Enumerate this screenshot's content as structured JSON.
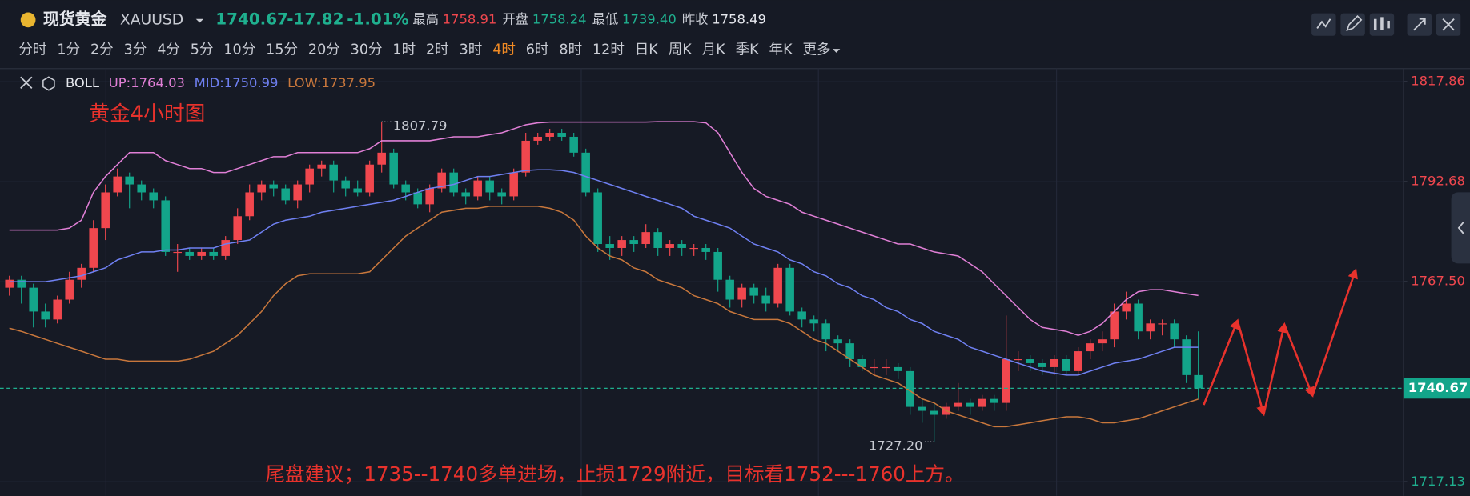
{
  "header": {
    "name": "现货黄金",
    "symbol": "XAUUSD",
    "price": "1740.67",
    "change": "-17.82",
    "change_pct": "-1.01%",
    "stats": [
      {
        "label": "最高",
        "value": "1758.91"
      },
      {
        "label": "开盘",
        "value": "1758.24"
      },
      {
        "label": "最低",
        "value": "1739.40"
      },
      {
        "label": "昨收",
        "value": "1758.49"
      }
    ]
  },
  "tabs": [
    "分时",
    "1分",
    "2分",
    "3分",
    "4分",
    "5分",
    "10分",
    "15分",
    "20分",
    "30分",
    "1时",
    "2时",
    "3时",
    "4时",
    "6时",
    "8时",
    "12时",
    "日K",
    "周K",
    "月K",
    "季K",
    "年K",
    "更多"
  ],
  "active_tab": "4时",
  "chart_data": {
    "type": "candlestick",
    "indicator": "BOLL",
    "title": "黄金4小时图",
    "annotation": "尾盘建议；1735--1740多单进场，止损1729附近，目标看1752---1760上方。",
    "up_color": "#f0474e",
    "down_color": "#13a58a",
    "ylim": [
      1714.56,
      1820.69
    ],
    "yticks": [
      1817.86,
      1792.68,
      {
        "value": 1767.5,
        "label": "1767.50"
      },
      1717.13
    ],
    "grid": true,
    "high_marker": 1807.79,
    "low_marker": {
      "value": 1727.2,
      "label": "1727.20"
    },
    "open": [
      1766,
      1768,
      1766,
      1760,
      1758,
      1763,
      1768,
      1771,
      1781,
      1790,
      1794,
      1792,
      1790,
      1788,
      1775,
      1775,
      1774,
      1775,
      1774,
      1778,
      1784,
      1790,
      1792,
      1791,
      1788,
      1792,
      1796,
      1797,
      1793,
      1791,
      1790,
      1797,
      1800,
      1792,
      1790,
      1787,
      1791,
      1795,
      1790,
      1789,
      1793,
      1790,
      1789,
      1795,
      1803,
      1804,
      1805,
      1804,
      1800,
      1790,
      1777,
      1776,
      1778,
      1777,
      1780,
      1776,
      1777,
      1776,
      1776,
      1775,
      1768,
      1763,
      1766,
      1764,
      1762,
      1771,
      1760,
      1758,
      1757,
      1753,
      1752,
      1748,
      1746,
      1746,
      1746,
      1745,
      1736,
      1735,
      1734,
      1736,
      1737,
      1736,
      1738,
      1737,
      1748,
      1748,
      1747,
      1746,
      1748,
      1745,
      1750,
      1752,
      1753,
      1760,
      1762,
      1755,
      1757,
      1757,
      1753,
      1744
    ],
    "high": [
      1769,
      1769,
      1767,
      1762,
      1764,
      1770,
      1772,
      1783,
      1792,
      1796,
      1795,
      1793,
      1791,
      1789,
      1777,
      1776,
      1776,
      1776,
      1779,
      1786,
      1792,
      1793,
      1793,
      1792,
      1793,
      1797,
      1798,
      1798,
      1794,
      1793,
      1798,
      1807.79,
      1801,
      1793,
      1791,
      1792,
      1796,
      1796,
      1791,
      1794,
      1794,
      1791,
      1796,
      1805,
      1805,
      1806,
      1806,
      1805,
      1801,
      1791,
      1779,
      1779,
      1779,
      1782,
      1781,
      1778,
      1778,
      1777,
      1777,
      1776,
      1769,
      1767,
      1767,
      1766,
      1772,
      1772,
      1761,
      1759,
      1758,
      1754,
      1753,
      1749,
      1748,
      1748,
      1747,
      1746,
      1738,
      1737,
      1737,
      1742,
      1738,
      1739,
      1739,
      1759,
      1750,
      1749,
      1748,
      1749,
      1749,
      1751,
      1753,
      1755,
      1762,
      1765,
      1763,
      1758,
      1758,
      1758,
      1754,
      1755
    ],
    "low": [
      1764,
      1762,
      1756,
      1756,
      1757,
      1762,
      1766,
      1770,
      1778,
      1789,
      1786,
      1788,
      1786,
      1774,
      1770,
      1773,
      1773,
      1773,
      1773,
      1777,
      1783,
      1788,
      1789,
      1787,
      1786,
      1790,
      1794,
      1790,
      1789,
      1789,
      1789,
      1795,
      1791,
      1788,
      1786,
      1785,
      1790,
      1789,
      1787,
      1788,
      1788,
      1787,
      1788,
      1794,
      1802,
      1803,
      1803,
      1799,
      1789,
      1775,
      1773,
      1774,
      1775,
      1776,
      1774,
      1774,
      1774,
      1774,
      1773,
      1765,
      1761,
      1761,
      1762,
      1760,
      1761,
      1759,
      1756,
      1755,
      1750,
      1750,
      1746,
      1745,
      1744,
      1744,
      1743,
      1734,
      1732,
      1727.2,
      1733,
      1735,
      1734,
      1735,
      1735,
      1735,
      1745,
      1745,
      1744,
      1744,
      1744,
      1744,
      1748,
      1750,
      1751,
      1758,
      1753,
      1753,
      1754,
      1751,
      1742,
      1738
    ],
    "close": [
      1768,
      1766,
      1760,
      1758,
      1763,
      1768,
      1771,
      1781,
      1790,
      1794,
      1792,
      1790,
      1788,
      1775,
      1775,
      1774,
      1775,
      1774,
      1778,
      1784,
      1790,
      1792,
      1791,
      1788,
      1792,
      1796,
      1797,
      1793,
      1791,
      1790,
      1797,
      1800,
      1792,
      1790,
      1787,
      1791,
      1795,
      1790,
      1789,
      1793,
      1790,
      1789,
      1795,
      1803,
      1804,
      1805,
      1804,
      1800,
      1790,
      1777,
      1776,
      1778,
      1777,
      1780,
      1776,
      1777,
      1776,
      1776,
      1775,
      1768,
      1763,
      1766,
      1764,
      1762,
      1771,
      1760,
      1758,
      1757,
      1753,
      1752,
      1748,
      1746,
      1746,
      1746,
      1745,
      1736,
      1735,
      1734,
      1736,
      1737,
      1736,
      1738,
      1737,
      1748,
      1748,
      1747,
      1746,
      1748,
      1745,
      1750,
      1752,
      1753,
      1760,
      1762,
      1755,
      1757,
      1757,
      1753,
      1744,
      1740.67
    ],
    "series": [
      {
        "name": "UP:",
        "color": "#e07fd6",
        "values": [
          1780.5,
          1780.5,
          1780.5,
          1780.5,
          1780.5,
          1781,
          1783,
          1790,
          1794,
          1797,
          1800,
          1800,
          1800,
          1798,
          1797,
          1796,
          1796,
          1795,
          1795,
          1796,
          1797,
          1798,
          1799,
          1799,
          1800,
          1800,
          1800,
          1800,
          1800,
          1800,
          1801,
          1803,
          1803,
          1803,
          1803,
          1803,
          1803.5,
          1804,
          1804,
          1804,
          1804.5,
          1805,
          1806,
          1807,
          1807.5,
          1807.7,
          1807.7,
          1807.7,
          1807.7,
          1807.7,
          1807.7,
          1807.7,
          1807.7,
          1807.7,
          1807.8,
          1807.8,
          1807.8,
          1807.8,
          1807.5,
          1805,
          1800,
          1795,
          1791,
          1789,
          1788,
          1787,
          1785,
          1784,
          1783,
          1782,
          1781,
          1780,
          1779,
          1778,
          1777,
          1777,
          1776,
          1775,
          1774.5,
          1774,
          1772,
          1770,
          1767,
          1764,
          1761,
          1758,
          1756,
          1755.5,
          1755,
          1754,
          1755,
          1757,
          1760,
          1763,
          1765,
          1765.5,
          1765.5,
          1765,
          1764.5,
          1764.03
        ]
      },
      {
        "name": "MID:",
        "color": "#6f80f2",
        "values": [
          1767.5,
          1767.5,
          1767.5,
          1767.5,
          1768,
          1768.5,
          1769,
          1770,
          1771,
          1773,
          1774,
          1775,
          1775,
          1775.5,
          1775.5,
          1776,
          1776,
          1776,
          1777,
          1777.5,
          1778,
          1780,
          1782,
          1783,
          1783.5,
          1784,
          1785,
          1785.5,
          1786,
          1786.5,
          1787,
          1787.5,
          1788,
          1789,
          1790,
          1791,
          1791.5,
          1792,
          1793,
          1794,
          1794,
          1794.5,
          1795,
          1795.5,
          1795.7,
          1795.7,
          1795.5,
          1795,
          1794,
          1793,
          1792,
          1791,
          1790,
          1789,
          1788,
          1787,
          1786,
          1784,
          1783,
          1782,
          1781,
          1779,
          1777,
          1776,
          1775,
          1773,
          1772,
          1770,
          1769,
          1767,
          1766,
          1764,
          1763,
          1761,
          1760,
          1758,
          1757,
          1755,
          1754,
          1753,
          1751,
          1750,
          1749,
          1748,
          1747,
          1746,
          1745,
          1744.5,
          1744,
          1744,
          1745,
          1746,
          1747,
          1747.5,
          1748,
          1749,
          1750,
          1751,
          1751,
          1750.99
        ]
      },
      {
        "name": "LOW:",
        "color": "#c8773c",
        "values": [
          1755.8,
          1755,
          1754,
          1753,
          1752,
          1751,
          1750,
          1749,
          1748,
          1748,
          1747.5,
          1747.5,
          1747.5,
          1747.5,
          1747.5,
          1748,
          1749,
          1750,
          1752,
          1754,
          1757,
          1760,
          1764,
          1767,
          1769,
          1769.5,
          1769.5,
          1769.5,
          1769.5,
          1769.5,
          1770,
          1773,
          1776,
          1779,
          1781,
          1783,
          1785,
          1785.5,
          1786,
          1786,
          1786.5,
          1786.5,
          1786.5,
          1786.5,
          1786.5,
          1786,
          1785,
          1783,
          1779,
          1776,
          1774,
          1773,
          1771,
          1770,
          1768,
          1767,
          1766,
          1764,
          1763,
          1762,
          1760,
          1759,
          1758,
          1758,
          1758,
          1757,
          1755,
          1753,
          1752,
          1750,
          1748,
          1746,
          1744,
          1743,
          1742,
          1740,
          1738,
          1737,
          1735,
          1734,
          1733,
          1732,
          1731,
          1731,
          1731.5,
          1732,
          1732.5,
          1733,
          1733.5,
          1733.5,
          1733,
          1732,
          1732,
          1732.5,
          1733,
          1734,
          1735,
          1736,
          1737,
          1737.95
        ]
      }
    ]
  }
}
